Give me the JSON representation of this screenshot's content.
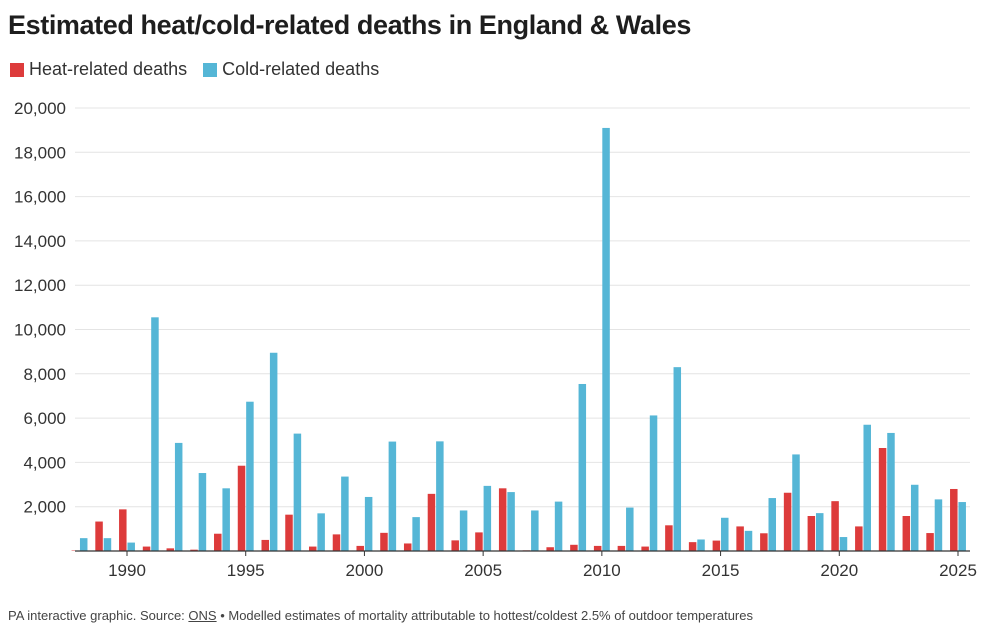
{
  "title": "Estimated heat/cold-related deaths in England & Wales",
  "footer": {
    "prefix": "PA interactive graphic. Source: ",
    "source_link": "ONS",
    "suffix": " • Modelled estimates of mortality attributable to hottest/coldest 2.5% of outdoor temperatures"
  },
  "colors": {
    "heat": "#dd3b3b",
    "cold": "#55b6d6",
    "grid": "#e4e4e4",
    "axis": "#333333",
    "tick_text": "#333333"
  },
  "chart_data": {
    "type": "bar",
    "title": "Estimated heat/cold-related deaths in England & Wales",
    "xlabel": "",
    "ylabel": "",
    "ylim": [
      0,
      20000
    ],
    "yticks": [
      2000,
      4000,
      6000,
      8000,
      10000,
      12000,
      14000,
      16000,
      18000,
      20000
    ],
    "ytick_labels": [
      "2,000",
      "4,000",
      "6,000",
      "8,000",
      "10,000",
      "12,000",
      "14,000",
      "16,000",
      "18,000",
      "20,000"
    ],
    "xticks": [
      1990,
      1995,
      2000,
      2005,
      2010,
      2015,
      2020,
      2025
    ],
    "grid": true,
    "legend": "top-left",
    "categories": [
      1988,
      1989,
      1990,
      1991,
      1992,
      1993,
      1994,
      1995,
      1996,
      1997,
      1998,
      1999,
      2000,
      2001,
      2002,
      2003,
      2004,
      2005,
      2006,
      2007,
      2008,
      2009,
      2010,
      2011,
      2012,
      2013,
      2014,
      2015,
      2016,
      2017,
      2018,
      2019,
      2020,
      2021,
      2022,
      2023,
      2024,
      2025
    ],
    "series": [
      {
        "name": "Heat-related deaths",
        "color": "#dd3b3b",
        "values": [
          20,
          1330,
          1880,
          200,
          120,
          60,
          780,
          3850,
          500,
          1640,
          200,
          750,
          230,
          820,
          340,
          2580,
          480,
          840,
          2830,
          30,
          170,
          280,
          230,
          230,
          200,
          1160,
          400,
          470,
          1110,
          800,
          2630,
          1580,
          2250,
          1110,
          4650,
          1580,
          810,
          2800
        ]
      },
      {
        "name": "Cold-related deaths",
        "color": "#55b6d6",
        "values": [
          580,
          580,
          380,
          10550,
          4880,
          3520,
          2830,
          6740,
          8950,
          5300,
          1700,
          3360,
          2440,
          4940,
          1530,
          4950,
          1830,
          2940,
          2660,
          1830,
          2230,
          7540,
          19100,
          1960,
          6120,
          8300,
          520,
          1500,
          910,
          2390,
          4360,
          1710,
          630,
          5700,
          5330,
          2990,
          2330,
          2210
        ]
      }
    ]
  }
}
